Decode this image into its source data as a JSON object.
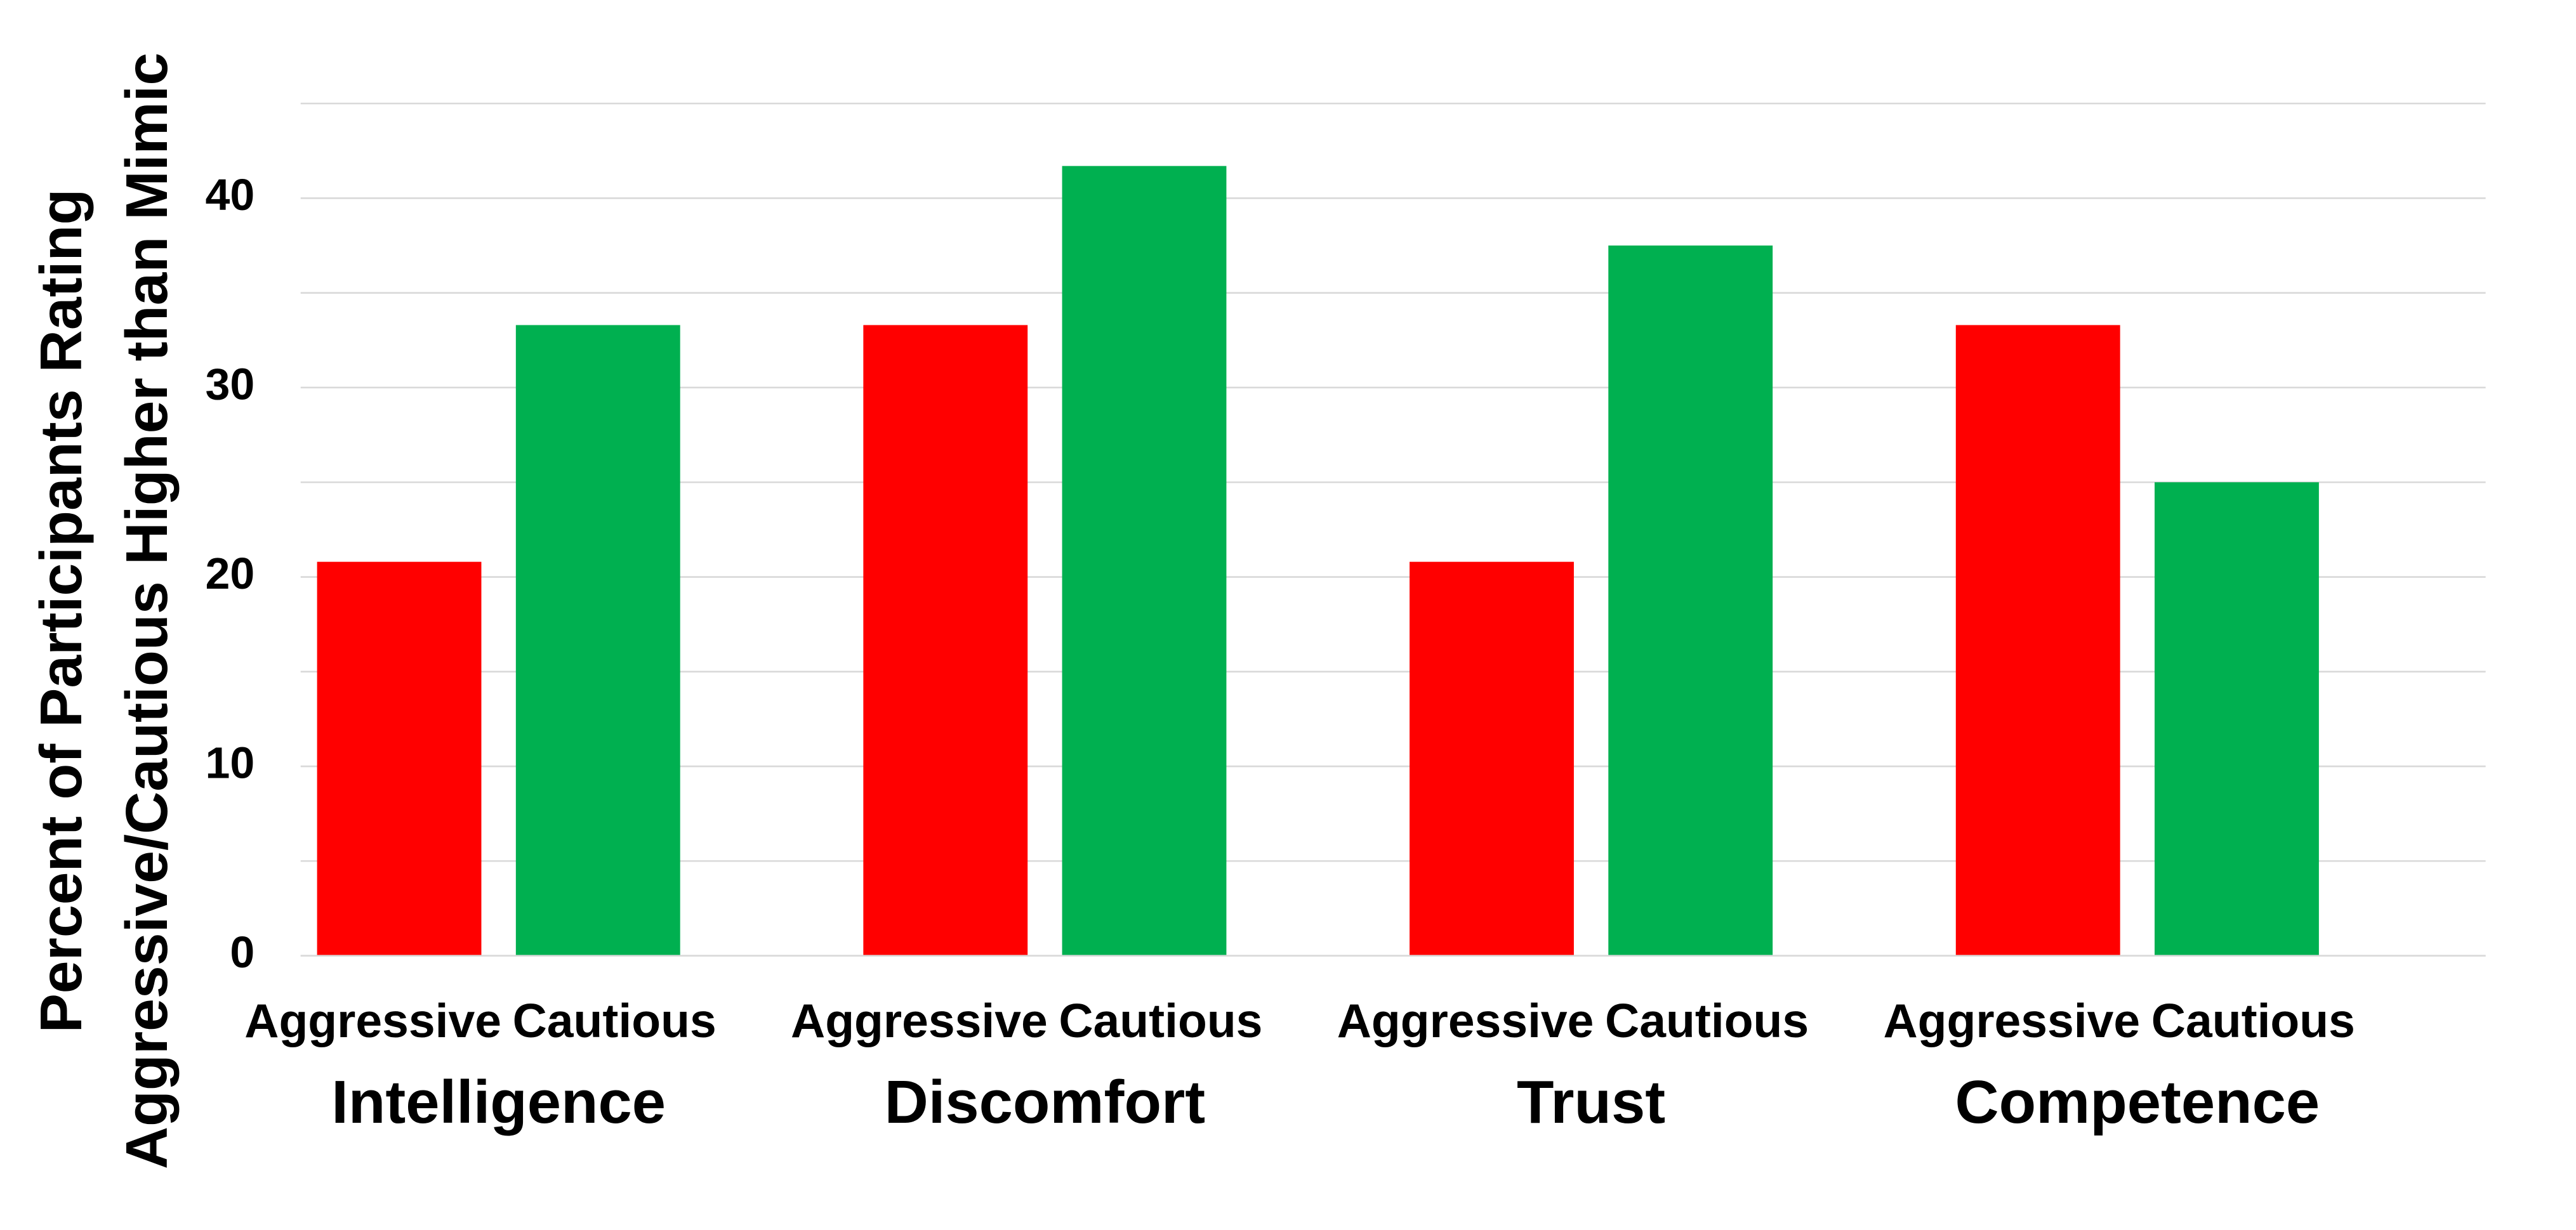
{
  "chart_data": {
    "type": "bar",
    "ylabel": [
      "Percent of Participants Rating",
      "Aggressive/Cautious Higher than Mimic"
    ],
    "categories": [
      "Intelligence",
      "Discomfort",
      "Trust",
      "Competence"
    ],
    "series": [
      {
        "name": "Aggressive",
        "color": "#ff0000",
        "values": [
          20.8,
          33.3,
          20.8,
          33.3
        ]
      },
      {
        "name": "Cautious",
        "color": "#00b050",
        "values": [
          33.3,
          41.7,
          37.5,
          25
        ]
      }
    ],
    "ylim": [
      0,
      45
    ],
    "yticks": [
      0,
      10,
      20,
      30,
      40
    ],
    "minor_yticks": [
      5,
      15,
      25,
      35,
      45
    ],
    "grid": true
  }
}
